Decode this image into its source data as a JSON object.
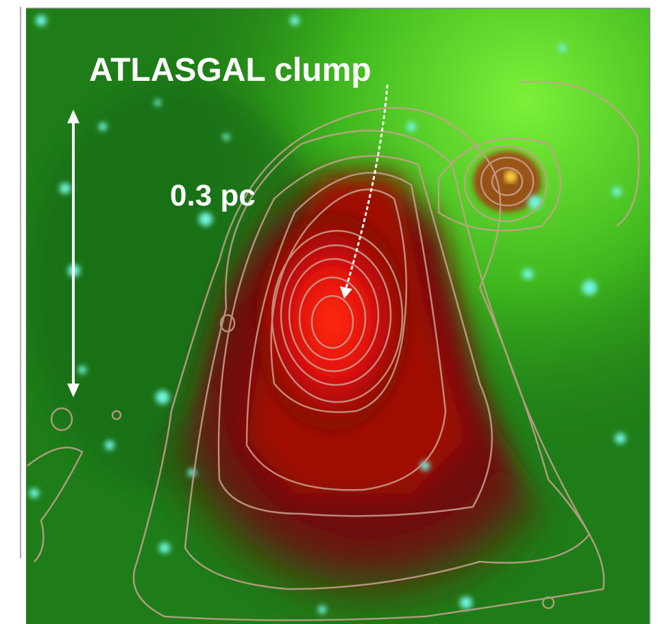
{
  "annotations": {
    "clump_label": "ATLASGAL clump",
    "scale_bar_label": "0.3 pc"
  }
}
